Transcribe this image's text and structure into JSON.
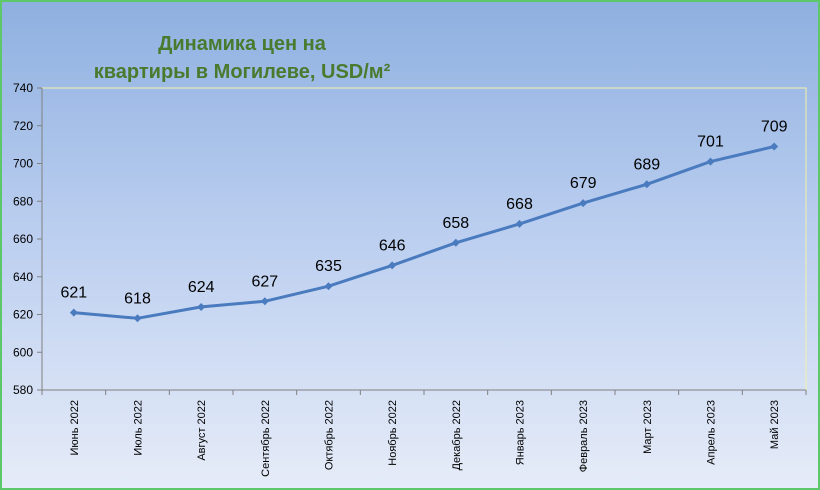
{
  "chart_data": {
    "type": "line",
    "title": [
      "Динамика цен на",
      "квартиры в Могилеве, USD/м²"
    ],
    "categories": [
      "Июнь 2022",
      "Июль 2022",
      "Август 2022",
      "Сентябрь 2022",
      "Октябрь 2022",
      "Ноябрь 2022",
      "Декабрь 2022",
      "Январь 2023",
      "Февраль 2023",
      "Март 2023",
      "Апрель 2023",
      "Май 2023"
    ],
    "values": [
      621,
      618,
      624,
      627,
      635,
      646,
      658,
      668,
      679,
      689,
      701,
      709
    ],
    "data_labels": [
      "621",
      "618",
      "624",
      "627",
      "635",
      "646",
      "658",
      "668",
      "679",
      "689",
      "701",
      "709"
    ],
    "ylim": [
      580,
      740
    ],
    "yticks": [
      580,
      600,
      620,
      640,
      660,
      680,
      700,
      720,
      740
    ],
    "xlabel": "",
    "ylabel": "",
    "grid": false,
    "legend": "none",
    "colors": {
      "line": "#4a7bbf",
      "title": "#4a7a2e",
      "frame": "#5cc86a",
      "plot_border": "#f2f2a8"
    }
  }
}
